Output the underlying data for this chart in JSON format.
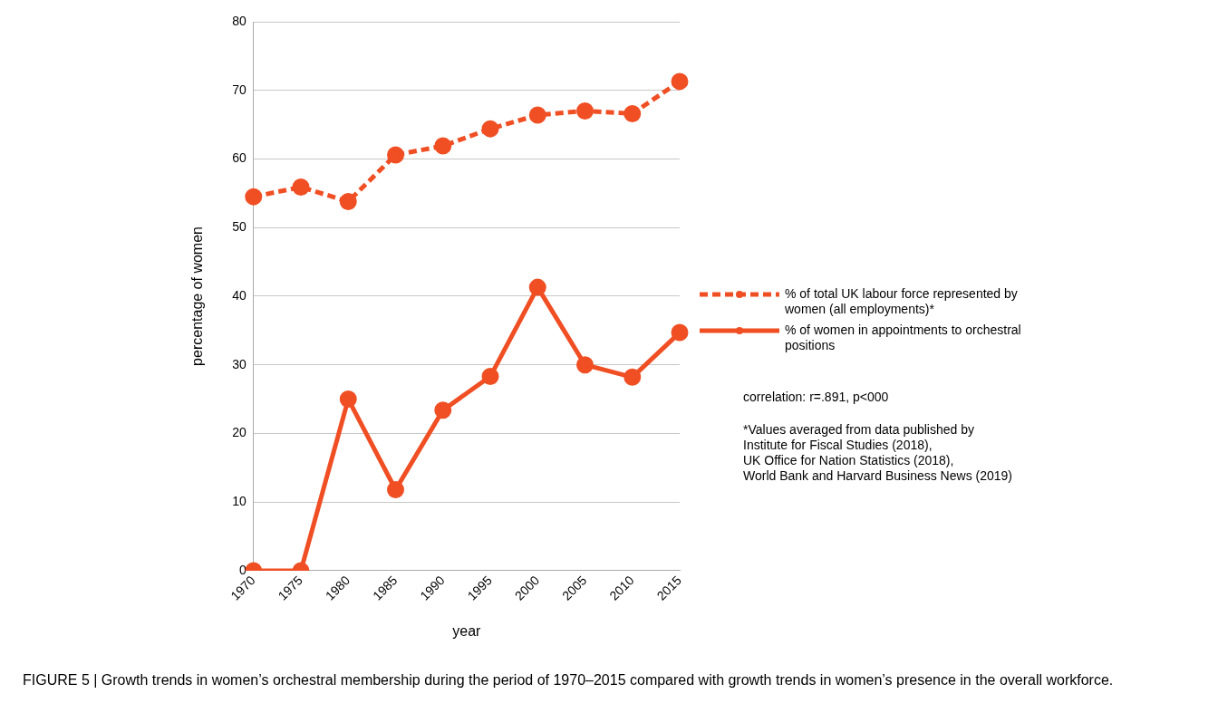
{
  "chart_data": {
    "type": "line",
    "xlabel": "year",
    "ylabel": "percentage of women",
    "categories": [
      "1970",
      "1975",
      "1980",
      "1985",
      "1990",
      "1995",
      "2000",
      "2005",
      "2010",
      "2015"
    ],
    "series": [
      {
        "name": "% of total UK labour force represented by women (all employments)*",
        "color": "#f04e23",
        "line_style": "dashed",
        "values": [
          54.5,
          55.9,
          53.8,
          60.6,
          61.9,
          64.4,
          66.4,
          67.0,
          66.6,
          71.3
        ]
      },
      {
        "name": "% of women in appointments to orchestral positions",
        "color": "#f04e23",
        "line_style": "solid",
        "values": [
          0,
          0,
          25.0,
          11.8,
          23.4,
          28.3,
          41.3,
          30.0,
          28.2,
          34.7
        ]
      }
    ],
    "ylim": [
      0,
      80
    ],
    "yticks": [
      0,
      10,
      20,
      30,
      40,
      50,
      60,
      70,
      80
    ],
    "grid": "y",
    "legend": "right",
    "marker": "circle",
    "annotations": [
      "correlation: r=.891, p<000",
      "*Values averaged from data published by\nInstitute for Fiscal Studies (2018),\nUK Office for Nation Statistics (2018),\nWorld Bank and Harvard Business News (2019)",
      "FIGURE 5 | Growth trends in women’s orchestral membership during the period of 1970–2015 compared with growth trends in women’s presence in the overall workforce."
    ]
  }
}
